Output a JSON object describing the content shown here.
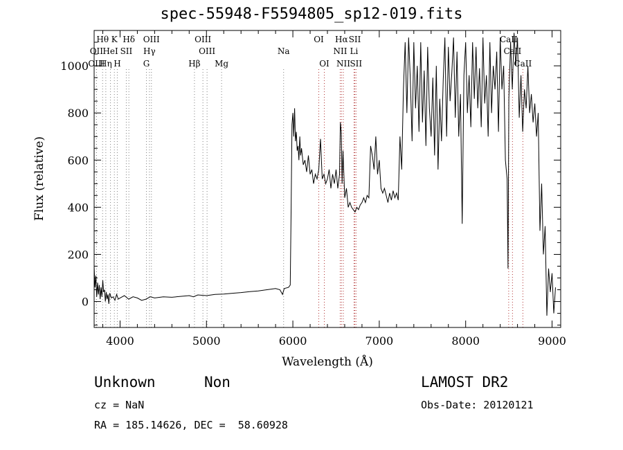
{
  "chart_data": {
    "type": "line",
    "title": "spec-55948-F5594805_sp12-019.fits",
    "xlabel": "Wavelength (Å)",
    "ylabel": "Flux (relative)",
    "xlim": [
      3700,
      9100
    ],
    "ylim": [
      -110,
      1150
    ],
    "x_ticks": [
      4000,
      5000,
      6000,
      7000,
      8000,
      9000
    ],
    "y_ticks": [
      0,
      200,
      400,
      600,
      800,
      1000
    ],
    "grid": false,
    "series": [
      {
        "points": [
          [
            3700,
            150
          ],
          [
            3710,
            60
          ],
          [
            3720,
            110
          ],
          [
            3730,
            20
          ],
          [
            3740,
            80
          ],
          [
            3750,
            30
          ],
          [
            3760,
            70
          ],
          [
            3770,
            10
          ],
          [
            3780,
            60
          ],
          [
            3790,
            20
          ],
          [
            3800,
            90
          ],
          [
            3810,
            40
          ],
          [
            3820,
            50
          ],
          [
            3830,
            0
          ],
          [
            3840,
            40
          ],
          [
            3850,
            10
          ],
          [
            3860,
            30
          ],
          [
            3870,
            -10
          ],
          [
            3880,
            35
          ],
          [
            3900,
            15
          ],
          [
            3920,
            20
          ],
          [
            3940,
            5
          ],
          [
            3960,
            30
          ],
          [
            3980,
            10
          ],
          [
            4000,
            15
          ],
          [
            4050,
            25
          ],
          [
            4100,
            10
          ],
          [
            4150,
            20
          ],
          [
            4200,
            15
          ],
          [
            4250,
            5
          ],
          [
            4300,
            10
          ],
          [
            4350,
            20
          ],
          [
            4400,
            15
          ],
          [
            4500,
            20
          ],
          [
            4600,
            18
          ],
          [
            4700,
            22
          ],
          [
            4800,
            25
          ],
          [
            4850,
            20
          ],
          [
            4900,
            28
          ],
          [
            5000,
            25
          ],
          [
            5100,
            30
          ],
          [
            5200,
            32
          ],
          [
            5300,
            35
          ],
          [
            5400,
            38
          ],
          [
            5500,
            42
          ],
          [
            5600,
            45
          ],
          [
            5700,
            50
          ],
          [
            5800,
            55
          ],
          [
            5850,
            50
          ],
          [
            5880,
            30
          ],
          [
            5900,
            55
          ],
          [
            5950,
            60
          ],
          [
            5970,
            70
          ],
          [
            5980,
            400
          ],
          [
            5990,
            750
          ],
          [
            6000,
            800
          ],
          [
            6010,
            700
          ],
          [
            6020,
            820
          ],
          [
            6030,
            680
          ],
          [
            6040,
            720
          ],
          [
            6050,
            640
          ],
          [
            6060,
            660
          ],
          [
            6070,
            600
          ],
          [
            6080,
            700
          ],
          [
            6090,
            620
          ],
          [
            6100,
            650
          ],
          [
            6120,
            580
          ],
          [
            6140,
            600
          ],
          [
            6160,
            550
          ],
          [
            6180,
            620
          ],
          [
            6200,
            540
          ],
          [
            6220,
            560
          ],
          [
            6240,
            500
          ],
          [
            6260,
            540
          ],
          [
            6280,
            520
          ],
          [
            6300,
            560
          ],
          [
            6320,
            690
          ],
          [
            6340,
            520
          ],
          [
            6360,
            540
          ],
          [
            6380,
            500
          ],
          [
            6400,
            520
          ],
          [
            6420,
            560
          ],
          [
            6440,
            480
          ],
          [
            6460,
            540
          ],
          [
            6480,
            500
          ],
          [
            6500,
            560
          ],
          [
            6520,
            480
          ],
          [
            6540,
            540
          ],
          [
            6550,
            760
          ],
          [
            6560,
            720
          ],
          [
            6570,
            500
          ],
          [
            6580,
            640
          ],
          [
            6600,
            440
          ],
          [
            6620,
            480
          ],
          [
            6640,
            400
          ],
          [
            6660,
            420
          ],
          [
            6680,
            400
          ],
          [
            6700,
            390
          ],
          [
            6720,
            380
          ],
          [
            6740,
            400
          ],
          [
            6760,
            390
          ],
          [
            6780,
            410
          ],
          [
            6800,
            420
          ],
          [
            6820,
            440
          ],
          [
            6840,
            420
          ],
          [
            6860,
            450
          ],
          [
            6880,
            440
          ],
          [
            6900,
            660
          ],
          [
            6920,
            620
          ],
          [
            6940,
            560
          ],
          [
            6960,
            700
          ],
          [
            6980,
            540
          ],
          [
            7000,
            600
          ],
          [
            7020,
            480
          ],
          [
            7040,
            460
          ],
          [
            7060,
            480
          ],
          [
            7080,
            450
          ],
          [
            7100,
            420
          ],
          [
            7120,
            460
          ],
          [
            7140,
            430
          ],
          [
            7160,
            470
          ],
          [
            7180,
            440
          ],
          [
            7200,
            460
          ],
          [
            7220,
            430
          ],
          [
            7240,
            700
          ],
          [
            7260,
            560
          ],
          [
            7280,
            900
          ],
          [
            7300,
            1100
          ],
          [
            7320,
            800
          ],
          [
            7340,
            1120
          ],
          [
            7360,
            940
          ],
          [
            7380,
            680
          ],
          [
            7400,
            1100
          ],
          [
            7420,
            820
          ],
          [
            7440,
            1000
          ],
          [
            7460,
            720
          ],
          [
            7480,
            1100
          ],
          [
            7500,
            760
          ],
          [
            7520,
            980
          ],
          [
            7540,
            660
          ],
          [
            7560,
            1080
          ],
          [
            7580,
            820
          ],
          [
            7600,
            700
          ],
          [
            7620,
            950
          ],
          [
            7640,
            620
          ],
          [
            7660,
            1000
          ],
          [
            7680,
            560
          ],
          [
            7700,
            860
          ],
          [
            7720,
            680
          ],
          [
            7740,
            940
          ],
          [
            7760,
            1120
          ],
          [
            7780,
            700
          ],
          [
            7800,
            1080
          ],
          [
            7820,
            850
          ],
          [
            7840,
            970
          ],
          [
            7860,
            1120
          ],
          [
            7880,
            780
          ],
          [
            7900,
            1060
          ],
          [
            7920,
            700
          ],
          [
            7940,
            880
          ],
          [
            7960,
            330
          ],
          [
            7980,
            960
          ],
          [
            8000,
            1100
          ],
          [
            8020,
            800
          ],
          [
            8040,
            960
          ],
          [
            8060,
            740
          ],
          [
            8080,
            1100
          ],
          [
            8100,
            860
          ],
          [
            8120,
            1080
          ],
          [
            8140,
            820
          ],
          [
            8160,
            990
          ],
          [
            8180,
            740
          ],
          [
            8200,
            1120
          ],
          [
            8220,
            840
          ],
          [
            8240,
            960
          ],
          [
            8260,
            700
          ],
          [
            8280,
            1100
          ],
          [
            8300,
            800
          ],
          [
            8320,
            1000
          ],
          [
            8340,
            900
          ],
          [
            8360,
            1060
          ],
          [
            8380,
            720
          ],
          [
            8400,
            1120
          ],
          [
            8420,
            900
          ],
          [
            8440,
            1000
          ],
          [
            8460,
            600
          ],
          [
            8480,
            520
          ],
          [
            8490,
            140
          ],
          [
            8500,
            860
          ],
          [
            8520,
            1100
          ],
          [
            8540,
            900
          ],
          [
            8560,
            1140
          ],
          [
            8580,
            1000
          ],
          [
            8600,
            1120
          ],
          [
            8620,
            780
          ],
          [
            8640,
            960
          ],
          [
            8660,
            720
          ],
          [
            8680,
            900
          ],
          [
            8700,
            820
          ],
          [
            8720,
            1000
          ],
          [
            8740,
            800
          ],
          [
            8760,
            880
          ],
          [
            8780,
            760
          ],
          [
            8800,
            840
          ],
          [
            8820,
            700
          ],
          [
            8840,
            800
          ],
          [
            8860,
            300
          ],
          [
            8880,
            500
          ],
          [
            8900,
            200
          ],
          [
            8920,
            320
          ],
          [
            8940,
            -60
          ],
          [
            8960,
            140
          ],
          [
            8980,
            40
          ],
          [
            9000,
            120
          ],
          [
            9020,
            -50
          ],
          [
            9040,
            60
          ]
        ]
      }
    ],
    "lines": [
      {
        "label": "Hθ",
        "x": 3798,
        "row": 1,
        "color": "#808080"
      },
      {
        "label": "K",
        "x": 3934,
        "row": 1,
        "color": "#808080"
      },
      {
        "label": "Hδ",
        "x": 4102,
        "row": 1,
        "color": "#808080"
      },
      {
        "label": "OIII",
        "x": 4363,
        "row": 1,
        "color": "#808080"
      },
      {
        "label": "OIII",
        "x": 4959,
        "row": 1,
        "color": "#808080"
      },
      {
        "label": "Na",
        "x": 5893,
        "row": 2,
        "color": "#808080"
      },
      {
        "label": "OI",
        "x": 6300,
        "row": 1,
        "color": "#b03030"
      },
      {
        "label": "Hα",
        "x": 6563,
        "row": 1,
        "color": "#b03030"
      },
      {
        "label": "SII",
        "x": 6717,
        "row": 1,
        "color": "#b03030"
      },
      {
        "label": "OII",
        "x": 3727,
        "row": 2,
        "color": "#808080"
      },
      {
        "label": "HeI",
        "x": 3889,
        "row": 2,
        "color": "#808080"
      },
      {
        "label": "SII",
        "x": 4072,
        "row": 2,
        "color": "#808080"
      },
      {
        "label": "Hγ",
        "x": 4340,
        "row": 2,
        "color": "#808080"
      },
      {
        "label": "OIII",
        "x": 5007,
        "row": 2,
        "color": "#808080"
      },
      {
        "label": "NII",
        "x": 6548,
        "row": 2,
        "color": "#b03030"
      },
      {
        "label": "Li",
        "x": 6708,
        "row": 2,
        "color": "#b03030"
      },
      {
        "label": "CaII",
        "x": 8498,
        "row": 1,
        "color": "#b03030"
      },
      {
        "label": "CaII",
        "x": 8542,
        "row": 2,
        "color": "#b03030"
      },
      {
        "label": "OIII",
        "x": 3727,
        "row": 3,
        "color": "#808080"
      },
      {
        "label": "Hη",
        "x": 3835,
        "row": 3,
        "color": "#808080"
      },
      {
        "label": "H",
        "x": 3968,
        "row": 3,
        "color": "#808080"
      },
      {
        "label": "G",
        "x": 4305,
        "row": 3,
        "color": "#808080"
      },
      {
        "label": "Hβ",
        "x": 4861,
        "row": 3,
        "color": "#808080"
      },
      {
        "label": "Mg",
        "x": 5175,
        "row": 3,
        "color": "#808080"
      },
      {
        "label": "OI",
        "x": 6364,
        "row": 3,
        "color": "#b03030"
      },
      {
        "label": "NII",
        "x": 6584,
        "row": 3,
        "color": "#b03030"
      },
      {
        "label": "SII",
        "x": 6731,
        "row": 3,
        "color": "#b03030"
      },
      {
        "label": "CaII",
        "x": 8662,
        "row": 3,
        "color": "#b03030"
      }
    ]
  },
  "info": {
    "class": "Unknown",
    "subclass": "Non",
    "survey": "LAMOST DR2",
    "cz": "cz = NaN",
    "obs_date": "Obs-Date: 20120121",
    "coords": "RA = 185.14626, DEC =  58.60928"
  }
}
